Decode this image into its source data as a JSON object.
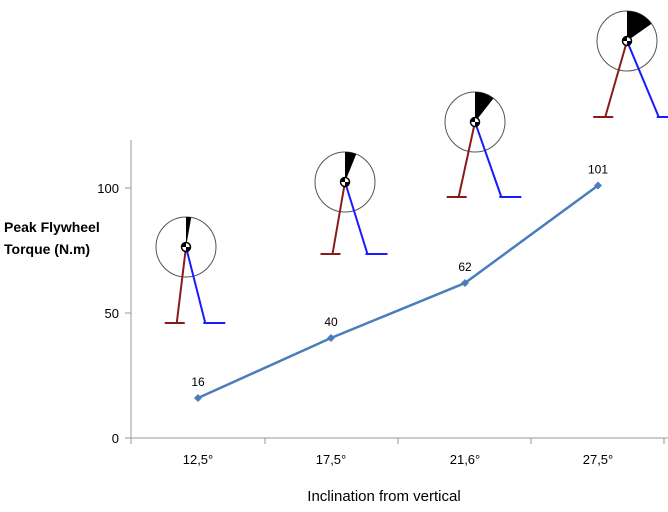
{
  "chart_data": {
    "type": "line",
    "categories": [
      "12,5°",
      "17,5°",
      "21,6°",
      "27,5°"
    ],
    "series": [
      {
        "values": [
          16,
          40,
          62,
          101
        ]
      }
    ],
    "data_labels": [
      "16",
      "40",
      "62",
      "101"
    ],
    "title": "",
    "xlabel": "Inclination from vertical",
    "ylabel_line1": "Peak Flywheel",
    "ylabel_line2": "Torque (N.m)",
    "yticks": [
      "0",
      "50",
      "100"
    ],
    "ylim": [
      0,
      120
    ],
    "grid": false,
    "legend": "none",
    "line_color": "#4a7ebb",
    "marker_color": "#4a7ebb"
  },
  "illustration": {
    "left_leg_color": "#8b1a1a",
    "right_leg_color": "#1a1aff",
    "sector_color": "#000000",
    "inclinations_deg": [
      12.5,
      17.5,
      21.6,
      27.5
    ]
  }
}
